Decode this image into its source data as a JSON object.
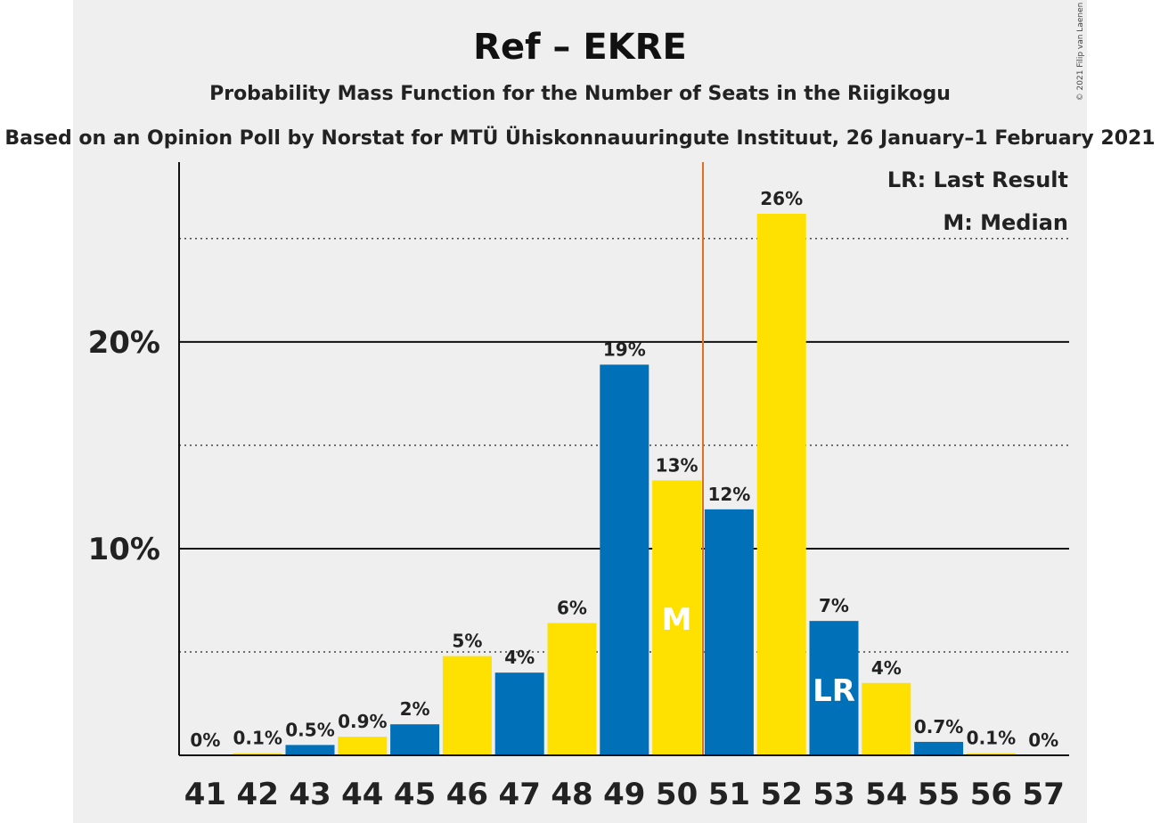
{
  "colors": {
    "blue": "#0070b8",
    "yellow": "#ffe100",
    "last_result_line": "#e07020",
    "background": "#efefef"
  },
  "chart_data": {
    "type": "bar",
    "title": "Ref – EKRE",
    "subtitle": "Probability Mass Function for the Number of Seats in the Riigikogu",
    "subtitle2": "Based on an Opinion Poll by Norstat for MTÜ Ühiskonnauuringute Instituut, 26 January–1 February 2021",
    "copyright": "© 2021 Filip van Laenen",
    "legend": {
      "lr": "LR: Last Result",
      "m": "M: Median",
      "position": "top-right"
    },
    "categories": [
      "41",
      "42",
      "43",
      "44",
      "45",
      "46",
      "47",
      "48",
      "49",
      "50",
      "51",
      "52",
      "53",
      "54",
      "55",
      "56",
      "57"
    ],
    "values": [
      0,
      0.1,
      0.5,
      0.9,
      1.5,
      4.8,
      4.0,
      6.4,
      18.9,
      13.3,
      11.9,
      26.2,
      6.5,
      3.5,
      0.65,
      0.1,
      0
    ],
    "labels": [
      "0%",
      "0.1%",
      "0.5%",
      "0.9%",
      "2%",
      "5%",
      "4%",
      "6%",
      "19%",
      "13%",
      "12%",
      "26%",
      "7%",
      "4%",
      "0.7%",
      "0.1%",
      "0%"
    ],
    "bar_colors": [
      "blue",
      "yellow",
      "blue",
      "yellow",
      "blue",
      "yellow",
      "blue",
      "yellow",
      "blue",
      "yellow",
      "blue",
      "yellow",
      "blue",
      "yellow",
      "blue",
      "yellow",
      "blue"
    ],
    "yticks": [
      {
        "value": 10,
        "label": "10%"
      },
      {
        "value": 20,
        "label": "20%"
      }
    ],
    "minor_gridlines": [
      5,
      15,
      25
    ],
    "ylim": [
      0,
      28.7
    ],
    "median_seat": "50",
    "median_marker": "M",
    "last_result_seat": "53",
    "last_result_marker": "LR",
    "majority_line_between": [
      "50",
      "51"
    ]
  }
}
